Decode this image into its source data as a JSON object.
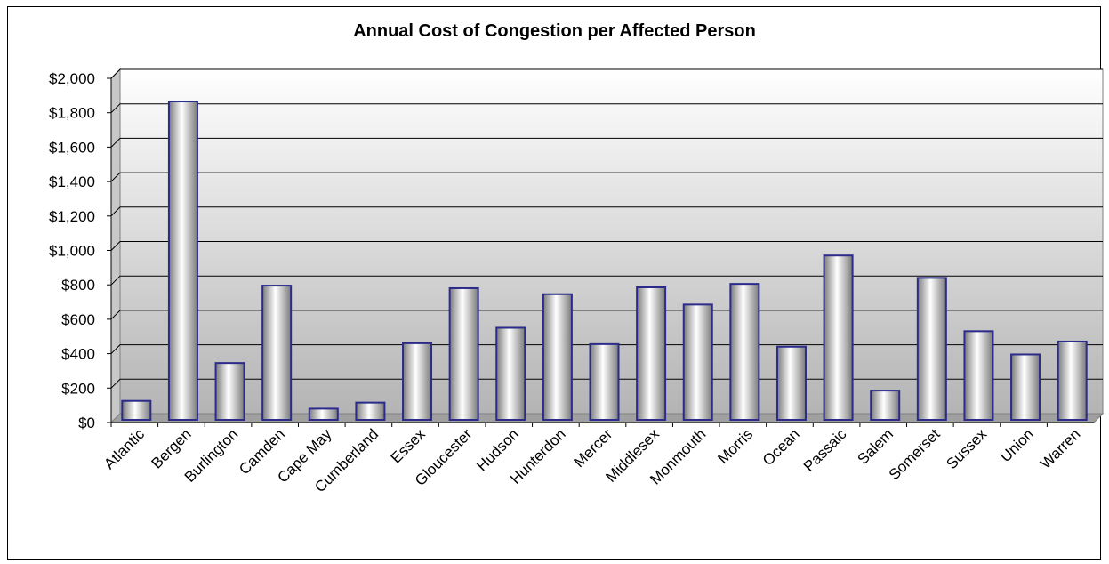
{
  "chart_data": {
    "type": "bar",
    "title": "Annual Cost of Congestion per Affected Person",
    "xlabel": "",
    "ylabel": "",
    "ylim": [
      0,
      2000
    ],
    "yticks": [
      0,
      200,
      400,
      600,
      800,
      1000,
      1200,
      1400,
      1600,
      1800,
      2000
    ],
    "ytick_labels": [
      "$0",
      "$200",
      "$400",
      "$600",
      "$800",
      "$1,000",
      "$1,200",
      "$1,400",
      "$1,600",
      "$1,800",
      "$2,000"
    ],
    "grid": true,
    "legend": "none",
    "categories": [
      "Atlantic",
      "Bergen",
      "Burlington",
      "Camden",
      "Cape May",
      "Cumberland",
      "Essex",
      "Gloucester",
      "Hudson",
      "Hunterdon",
      "Mercer",
      "Middlesex",
      "Monmouth",
      "Morris",
      "Ocean",
      "Passaic",
      "Salem",
      "Somerset",
      "Sussex",
      "Union",
      "Warren"
    ],
    "values": [
      110,
      1850,
      330,
      780,
      65,
      100,
      445,
      765,
      535,
      730,
      440,
      770,
      670,
      790,
      425,
      955,
      170,
      825,
      515,
      380,
      455
    ],
    "colors": {
      "bar_border": "#2b2b8c",
      "bar_light": "#ffffff",
      "bar_dark": "#7a7a7a",
      "plot_top": "#ffffff",
      "plot_bottom": "#b4b4b4",
      "grid": "#000000"
    }
  }
}
